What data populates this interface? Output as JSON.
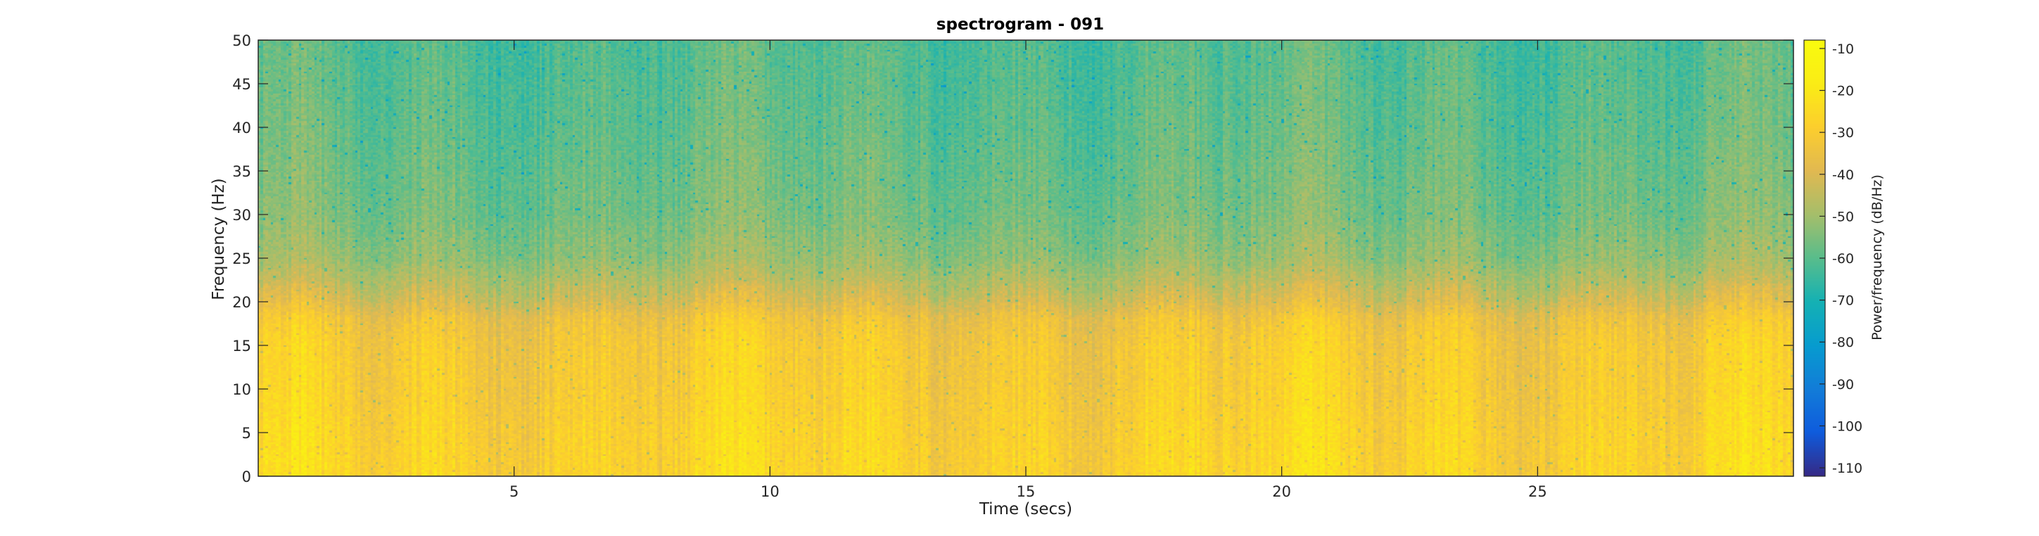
{
  "chart_data": {
    "type": "heatmap",
    "title": "spectrogram - 091",
    "xlabel": "Time (secs)",
    "ylabel": "Frequency (Hz)",
    "xlim": [
      0,
      30
    ],
    "ylim": [
      0,
      50
    ],
    "xticks": [
      5,
      10,
      15,
      20,
      25
    ],
    "yticks": [
      0,
      5,
      10,
      15,
      20,
      25,
      30,
      35,
      40,
      45,
      50
    ],
    "colormap": "parula",
    "colorbar": {
      "label": "Power/frequency (dB/Hz)",
      "range": [
        -112,
        -8
      ],
      "ticks": [
        -10,
        -20,
        -30,
        -40,
        -50,
        -60,
        -70,
        -80,
        -90,
        -100,
        -110
      ]
    },
    "power_profile_db": [
      {
        "freq": 0,
        "power": -27
      },
      {
        "freq": 5,
        "power": -28
      },
      {
        "freq": 10,
        "power": -30
      },
      {
        "freq": 15,
        "power": -31
      },
      {
        "freq": 18,
        "power": -34
      },
      {
        "freq": 20,
        "power": -41
      },
      {
        "freq": 23,
        "power": -48
      },
      {
        "freq": 25,
        "power": -52
      },
      {
        "freq": 30,
        "power": -56
      },
      {
        "freq": 40,
        "power": -59
      },
      {
        "freq": 50,
        "power": -61
      }
    ]
  }
}
